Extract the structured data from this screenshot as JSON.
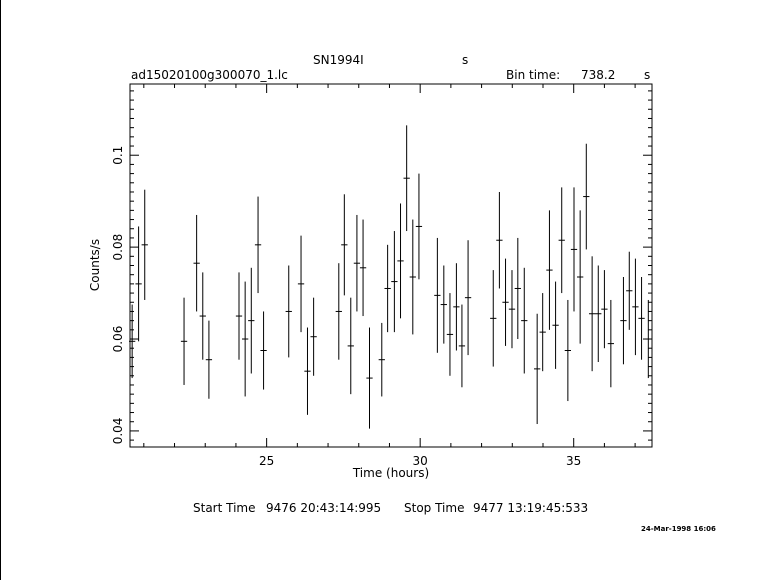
{
  "header": {
    "object_name": "SN1994I",
    "units_label": "s",
    "file_name": "ad15020100g300070_1.lc",
    "bin_time_label": "Bin time:",
    "bin_time_value": "738.2",
    "bin_time_unit": "s"
  },
  "footer": {
    "start_label": "Start Time",
    "start_value": "9476 20:43:14:995",
    "stop_label": "Stop Time",
    "stop_value": "9477 13:19:45:533",
    "date_stamp": "24-Mar-1998 16:06"
  },
  "chart_data": {
    "type": "scatter",
    "title": "SN1994I",
    "xlabel": "Time (hours)",
    "ylabel": "Counts/s",
    "xlim": [
      20.55,
      37.55
    ],
    "ylim": [
      0.0365,
      0.1155
    ],
    "x_ticks": [
      25,
      30,
      35
    ],
    "y_ticks": [
      0.04,
      0.06,
      0.08,
      0.1
    ],
    "x_tick_labels": [
      "25",
      "30",
      "35"
    ],
    "y_tick_labels": [
      "0.04",
      "0.06",
      "0.08",
      "0.1"
    ],
    "grid": false,
    "series": [
      {
        "x": [
          20.62,
          20.83,
          21.03,
          22.31,
          22.72,
          22.92,
          23.12,
          24.1,
          24.3,
          24.5,
          24.72,
          24.9,
          25.72,
          26.12,
          26.33,
          26.53,
          27.35,
          27.53,
          27.74,
          27.94,
          28.14,
          28.35,
          28.75,
          28.94,
          29.16,
          29.36,
          29.56,
          29.76,
          29.96,
          30.56,
          30.77,
          30.97,
          31.18,
          31.36,
          31.56,
          32.38,
          32.58,
          32.78,
          32.99,
          33.18,
          33.39,
          33.81,
          33.99,
          34.21,
          34.41,
          34.61,
          34.81,
          35.01,
          35.21,
          35.41,
          35.6,
          35.8,
          36.0,
          36.21,
          36.62,
          36.81,
          37.01,
          37.21,
          37.43
        ],
        "y": [
          0.0595,
          0.072,
          0.0805,
          0.0595,
          0.0765,
          0.065,
          0.0555,
          0.065,
          0.06,
          0.064,
          0.0805,
          0.0575,
          0.066,
          0.072,
          0.053,
          0.0605,
          0.066,
          0.0805,
          0.0585,
          0.0765,
          0.0755,
          0.0515,
          0.0555,
          0.071,
          0.0725,
          0.077,
          0.095,
          0.0735,
          0.0845,
          0.0695,
          0.0675,
          0.061,
          0.067,
          0.0585,
          0.069,
          0.0645,
          0.0815,
          0.068,
          0.0665,
          0.071,
          0.064,
          0.0535,
          0.0615,
          0.075,
          0.063,
          0.0815,
          0.0575,
          0.0795,
          0.0735,
          0.091,
          0.0655,
          0.0655,
          0.0665,
          0.059,
          0.064,
          0.0705,
          0.067,
          0.0645,
          0.06
        ],
        "err": [
          0.008,
          0.0125,
          0.012,
          0.0095,
          0.0105,
          0.0095,
          0.0085,
          0.0095,
          0.0125,
          0.0115,
          0.0105,
          0.0085,
          0.01,
          0.0105,
          0.0095,
          0.0085,
          0.0105,
          0.011,
          0.0105,
          0.0105,
          0.0105,
          0.011,
          0.008,
          0.0095,
          0.011,
          0.0125,
          0.0115,
          0.0125,
          0.0115,
          0.0125,
          0.0085,
          0.009,
          0.0095,
          0.009,
          0.0125,
          0.0105,
          0.0105,
          0.0095,
          0.0085,
          0.011,
          0.0115,
          0.012,
          0.0085,
          0.013,
          0.0095,
          0.0115,
          0.011,
          0.0135,
          0.0145,
          0.0115,
          0.0125,
          0.0105,
          0.0085,
          0.0095,
          0.0095,
          0.0085,
          0.0105,
          0.009,
          0.0085
        ],
        "xerr": 0.1025
      }
    ]
  }
}
